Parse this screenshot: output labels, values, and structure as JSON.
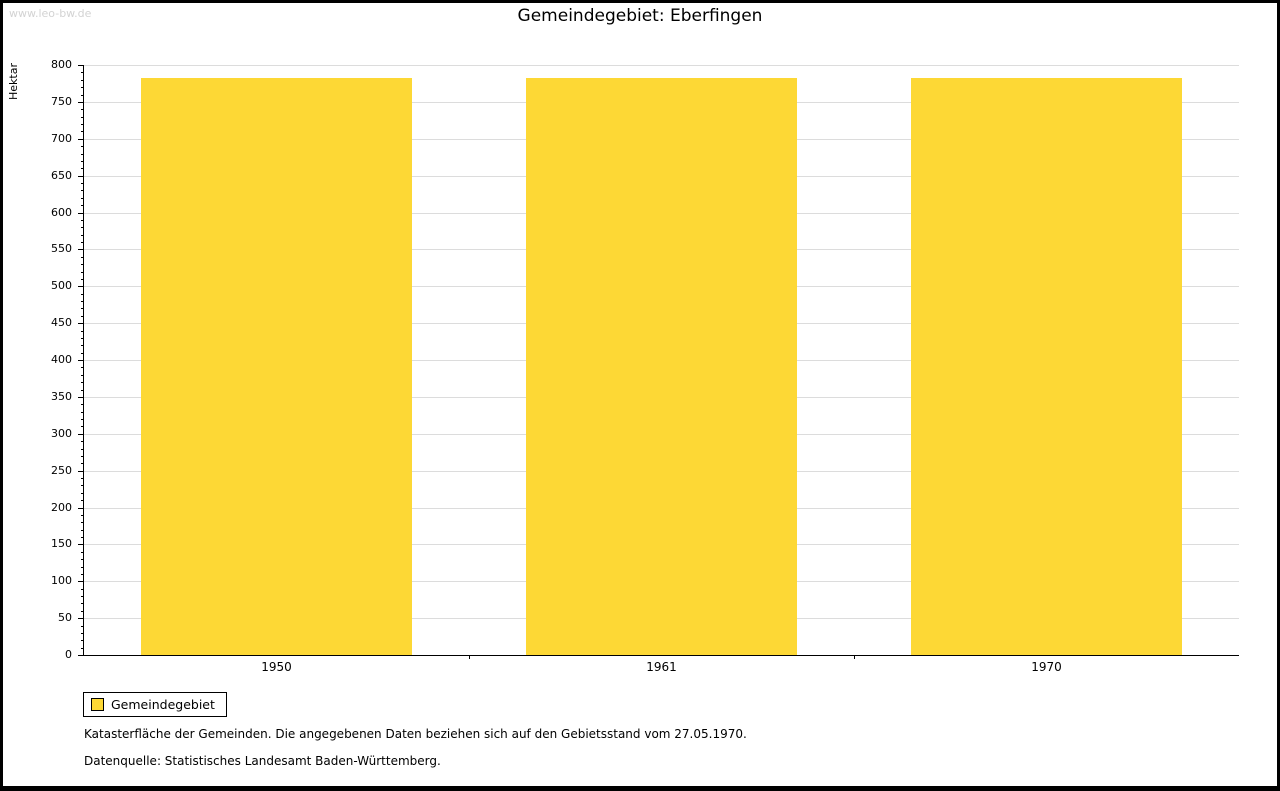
{
  "watermark": "www.leo-bw.de",
  "legend": {
    "label": "Gemeindegebiet",
    "color": "#FDD835"
  },
  "footnotes": [
    "Katasterfläche der Gemeinden. Die angegebenen Daten beziehen sich auf den Gebietsstand vom 27.05.1970.",
    "Datenquelle: Statistisches Landesamt Baden-Württemberg."
  ],
  "chart_data": {
    "type": "bar",
    "title": "Gemeindegebiet: Eberfingen",
    "xlabel": "",
    "ylabel": "Hektar",
    "categories": [
      "1950",
      "1961",
      "1970"
    ],
    "series": [
      {
        "name": "Gemeindegebiet",
        "values": [
          782,
          782,
          782
        ]
      }
    ],
    "ylim": [
      0,
      800
    ],
    "y_major_step": 50,
    "y_minor_step": 10,
    "bar_color": "#FDD835",
    "grid": true,
    "gridline_color": "#DCDCDC",
    "legend_position": "bottom-left"
  }
}
